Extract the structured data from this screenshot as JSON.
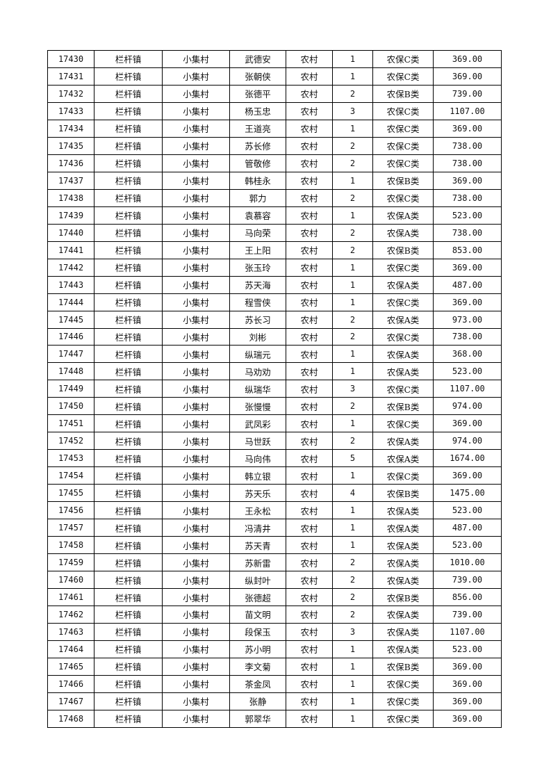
{
  "table": {
    "rows": [
      [
        "17430",
        "栏杆镇",
        "小集村",
        "武德安",
        "农村",
        "1",
        "农保C类",
        "369.00"
      ],
      [
        "17431",
        "栏杆镇",
        "小集村",
        "张朝侠",
        "农村",
        "1",
        "农保C类",
        "369.00"
      ],
      [
        "17432",
        "栏杆镇",
        "小集村",
        "张德平",
        "农村",
        "2",
        "农保B类",
        "739.00"
      ],
      [
        "17433",
        "栏杆镇",
        "小集村",
        "杨玉忠",
        "农村",
        "3",
        "农保C类",
        "1107.00"
      ],
      [
        "17434",
        "栏杆镇",
        "小集村",
        "王道亮",
        "农村",
        "1",
        "农保C类",
        "369.00"
      ],
      [
        "17435",
        "栏杆镇",
        "小集村",
        "苏长修",
        "农村",
        "2",
        "农保C类",
        "738.00"
      ],
      [
        "17436",
        "栏杆镇",
        "小集村",
        "管敬修",
        "农村",
        "2",
        "农保C类",
        "738.00"
      ],
      [
        "17437",
        "栏杆镇",
        "小集村",
        "韩桂永",
        "农村",
        "1",
        "农保B类",
        "369.00"
      ],
      [
        "17438",
        "栏杆镇",
        "小集村",
        "郭力",
        "农村",
        "2",
        "农保C类",
        "738.00"
      ],
      [
        "17439",
        "栏杆镇",
        "小集村",
        "袁慕容",
        "农村",
        "1",
        "农保A类",
        "523.00"
      ],
      [
        "17440",
        "栏杆镇",
        "小集村",
        "马向荣",
        "农村",
        "2",
        "农保A类",
        "738.00"
      ],
      [
        "17441",
        "栏杆镇",
        "小集村",
        "王上阳",
        "农村",
        "2",
        "农保B类",
        "853.00"
      ],
      [
        "17442",
        "栏杆镇",
        "小集村",
        "张玉玲",
        "农村",
        "1",
        "农保C类",
        "369.00"
      ],
      [
        "17443",
        "栏杆镇",
        "小集村",
        "苏天海",
        "农村",
        "1",
        "农保A类",
        "487.00"
      ],
      [
        "17444",
        "栏杆镇",
        "小集村",
        "程雪侠",
        "农村",
        "1",
        "农保C类",
        "369.00"
      ],
      [
        "17445",
        "栏杆镇",
        "小集村",
        "苏长习",
        "农村",
        "2",
        "农保A类",
        "973.00"
      ],
      [
        "17446",
        "栏杆镇",
        "小集村",
        "刘彬",
        "农村",
        "2",
        "农保C类",
        "738.00"
      ],
      [
        "17447",
        "栏杆镇",
        "小集村",
        "纵瑞元",
        "农村",
        "1",
        "农保A类",
        "368.00"
      ],
      [
        "17448",
        "栏杆镇",
        "小集村",
        "马劝劝",
        "农村",
        "1",
        "农保A类",
        "523.00"
      ],
      [
        "17449",
        "栏杆镇",
        "小集村",
        "纵瑞华",
        "农村",
        "3",
        "农保C类",
        "1107.00"
      ],
      [
        "17450",
        "栏杆镇",
        "小集村",
        "张慢慢",
        "农村",
        "2",
        "农保B类",
        "974.00"
      ],
      [
        "17451",
        "栏杆镇",
        "小集村",
        "武凤彩",
        "农村",
        "1",
        "农保C类",
        "369.00"
      ],
      [
        "17452",
        "栏杆镇",
        "小集村",
        "马世跃",
        "农村",
        "2",
        "农保A类",
        "974.00"
      ],
      [
        "17453",
        "栏杆镇",
        "小集村",
        "马向伟",
        "农村",
        "5",
        "农保A类",
        "1674.00"
      ],
      [
        "17454",
        "栏杆镇",
        "小集村",
        "韩立银",
        "农村",
        "1",
        "农保C类",
        "369.00"
      ],
      [
        "17455",
        "栏杆镇",
        "小集村",
        "苏天乐",
        "农村",
        "4",
        "农保B类",
        "1475.00"
      ],
      [
        "17456",
        "栏杆镇",
        "小集村",
        "王永松",
        "农村",
        "1",
        "农保A类",
        "523.00"
      ],
      [
        "17457",
        "栏杆镇",
        "小集村",
        "冯清井",
        "农村",
        "1",
        "农保A类",
        "487.00"
      ],
      [
        "17458",
        "栏杆镇",
        "小集村",
        "苏天青",
        "农村",
        "1",
        "农保A类",
        "523.00"
      ],
      [
        "17459",
        "栏杆镇",
        "小集村",
        "苏新雷",
        "农村",
        "2",
        "农保A类",
        "1010.00"
      ],
      [
        "17460",
        "栏杆镇",
        "小集村",
        "纵封叶",
        "农村",
        "2",
        "农保A类",
        "739.00"
      ],
      [
        "17461",
        "栏杆镇",
        "小集村",
        "张德超",
        "农村",
        "2",
        "农保B类",
        "856.00"
      ],
      [
        "17462",
        "栏杆镇",
        "小集村",
        "苗文明",
        "农村",
        "2",
        "农保A类",
        "739.00"
      ],
      [
        "17463",
        "栏杆镇",
        "小集村",
        "段保玉",
        "农村",
        "3",
        "农保A类",
        "1107.00"
      ],
      [
        "17464",
        "栏杆镇",
        "小集村",
        "苏小明",
        "农村",
        "1",
        "农保A类",
        "523.00"
      ],
      [
        "17465",
        "栏杆镇",
        "小集村",
        "李文菊",
        "农村",
        "1",
        "农保B类",
        "369.00"
      ],
      [
        "17466",
        "栏杆镇",
        "小集村",
        "茶金凤",
        "农村",
        "1",
        "农保C类",
        "369.00"
      ],
      [
        "17467",
        "栏杆镇",
        "小集村",
        "张静",
        "农村",
        "1",
        "农保C类",
        "369.00"
      ],
      [
        "17468",
        "栏杆镇",
        "小集村",
        "郭翠华",
        "农村",
        "1",
        "农保C类",
        "369.00"
      ]
    ]
  }
}
